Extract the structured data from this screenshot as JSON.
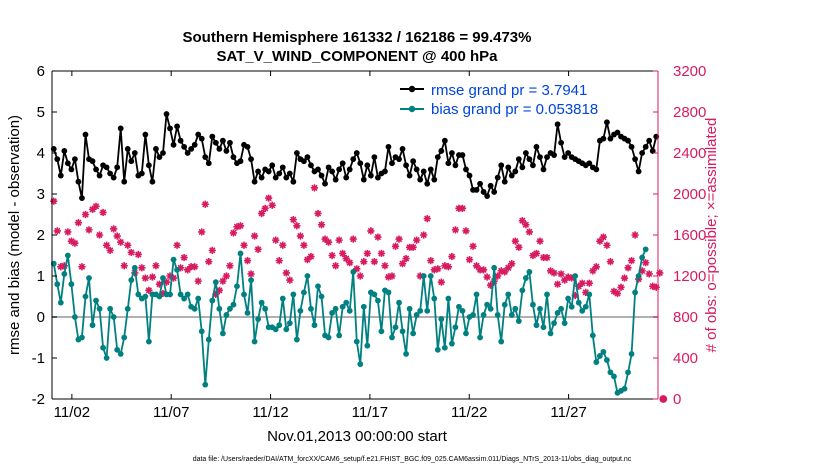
{
  "chart_data": {
    "type": "line",
    "title": "Southern Hemisphere 161332 / 162186 = 99.473%",
    "subtitle": "SAT_V_WIND_COMPONENT @ 400 hPa",
    "xlabel": "Nov.01,2013 00:00:00 start",
    "ylabel_left": "rmse and bias (model - observation)",
    "ylabel_right": "# of obs: o=possible; ×=assimilated",
    "footer": "data file: /Users/raeder/DAI/ATM_forcXX/CAM6_setup/f.e21.FHIST_BGC.f09_025.CAM6assim.011/Diags_NTrS_2013-11/obs_diag_output.nc",
    "xlim": [
      0.5,
      31
    ],
    "x_ticks": [
      1.5,
      6.5,
      11.5,
      16.5,
      21.5,
      26.5
    ],
    "x_tick_labels": [
      "11/02",
      "11/07",
      "11/12",
      "11/17",
      "11/22",
      "11/27"
    ],
    "ylim_left": [
      -2,
      6
    ],
    "y_ticks_left": [
      -2,
      -1,
      0,
      1,
      2,
      3,
      4,
      5,
      6
    ],
    "ylim_right": [
      0,
      3200
    ],
    "y_ticks_right": [
      0,
      400,
      800,
      1200,
      1600,
      2000,
      2400,
      2800,
      3200
    ],
    "colors": {
      "rmse": "#000000",
      "bias": "#008080",
      "obs": "#d81b60",
      "zero_line": "#b0b0b0",
      "legend_text": "#0044dd"
    },
    "legend": [
      {
        "name": "rmse grand pr = 3.7941"
      },
      {
        "name": "bias grand pr = 0.053818"
      }
    ],
    "series": [
      {
        "name": "rmse",
        "values": [
          4.1,
          3.85,
          3.45,
          4.05,
          3.75,
          3.6,
          3.85,
          3.3,
          2.9,
          4.45,
          3.85,
          3.8,
          3.6,
          3.45,
          3.7,
          3.65,
          3.5,
          3.4,
          3.65,
          4.6,
          3.3,
          4.1,
          3.8,
          4.0,
          3.45,
          3.5,
          4.45,
          3.7,
          3.3,
          4.1,
          3.9,
          4.0,
          4.95,
          4.6,
          4.2,
          4.65,
          4.3,
          4.15,
          4.0,
          4.1,
          4.2,
          4.45,
          4.35,
          3.9,
          3.75,
          4.4,
          4.25,
          4.1,
          4.3,
          4.05,
          4.25,
          3.9,
          3.75,
          3.8,
          4.2,
          4.15,
          3.85,
          3.3,
          3.55,
          3.4,
          3.6,
          3.55,
          3.7,
          3.4,
          3.5,
          3.65,
          3.4,
          3.5,
          3.3,
          4.0,
          3.85,
          3.8,
          3.9,
          3.7,
          3.55,
          3.6,
          3.45,
          3.25,
          3.65,
          3.55,
          3.35,
          3.6,
          3.75,
          3.4,
          3.6,
          3.85,
          4.0,
          3.75,
          3.35,
          3.7,
          3.45,
          3.9,
          3.4,
          3.5,
          3.55,
          4.15,
          3.75,
          3.9,
          3.85,
          4.1,
          3.7,
          3.45,
          3.8,
          3.6,
          3.35,
          3.55,
          3.25,
          3.6,
          3.35,
          3.9,
          4.05,
          4.3,
          3.75,
          4.0,
          3.7,
          3.95,
          3.95,
          3.6,
          3.45,
          3.1,
          3.1,
          3.25,
          3.05,
          2.95,
          3.2,
          3.05,
          3.4,
          3.7,
          3.3,
          3.65,
          3.45,
          3.55,
          3.85,
          3.65,
          4.0,
          3.85,
          3.7,
          4.15,
          3.9,
          3.6,
          3.9,
          4.0,
          3.95,
          4.7,
          4.25,
          3.9,
          4.0,
          3.9,
          3.85,
          3.8,
          3.75,
          3.7,
          3.75,
          3.65,
          3.6,
          4.3,
          4.35,
          4.75,
          4.35,
          4.45,
          4.5,
          4.4,
          4.35,
          4.3,
          4.15,
          3.85,
          3.55,
          4.0,
          4.15,
          4.3,
          4.05,
          4.4
        ]
      },
      {
        "name": "bias",
        "values": [
          1.3,
          0.8,
          0.35,
          1.05,
          1.5,
          0.8,
          0,
          -0.55,
          -0.5,
          0.5,
          0.95,
          -0.2,
          0.4,
          0.2,
          -0.75,
          -1.0,
          0.2,
          0,
          -0.8,
          -0.9,
          -0.5,
          0.2,
          0.9,
          1.2,
          0.55,
          0.45,
          0.5,
          -0.6,
          0.55,
          0.55,
          0.5,
          0.95,
          0.55,
          0.55,
          1.4,
          1.15,
          0.55,
          0.45,
          0.55,
          0.25,
          0.2,
          0.45,
          -0.35,
          -1.65,
          -0.55,
          0.4,
          0.85,
          0.2,
          -0.4,
          0.05,
          0.2,
          0.3,
          0.75,
          1.55,
          0.55,
          0.1,
          0.9,
          -0.6,
          -0.05,
          0.35,
          0.2,
          -0.25,
          -0.25,
          -0.3,
          -0.2,
          0.45,
          -0.3,
          -0.15,
          0.55,
          -0.55,
          0.15,
          0.6,
          1.0,
          0.2,
          -0.2,
          0.75,
          0.5,
          -0.45,
          -0.5,
          0.1,
          0.2,
          -0.45,
          0.25,
          0.35,
          0.15,
          1.1,
          -0.6,
          -1.15,
          0.25,
          -0.7,
          0.6,
          0.55,
          0.4,
          -0.35,
          0.65,
          0.6,
          -0.5,
          -0.25,
          0.35,
          -0.35,
          -0.9,
          0.2,
          -0.4,
          0.05,
          0.15,
          1.0,
          0.15,
          1.0,
          0.45,
          -0.8,
          -0.05,
          -0.75,
          0.45,
          -0.65,
          -0.25,
          0.25,
          0.15,
          -0.4,
          0.0,
          0.05,
          0.55,
          -0.5,
          0.05,
          0.3,
          0.2,
          1.2,
          0.05,
          -0.6,
          0.3,
          0.55,
          0.05,
          0.2,
          -0.1,
          0.65,
          0.95,
          1.1,
          0.3,
          -0.2,
          0.2,
          -0.25,
          0.55,
          -0.4,
          -0.15,
          0.1,
          0.2,
          -0.15,
          0.45,
          0.25,
          1.0,
          0.35,
          0.15,
          0.25,
          0.55,
          -0.45,
          -1.1,
          -0.95,
          -0.85,
          -1.05,
          -1.35,
          -1.45,
          -1.85,
          -1.8,
          -1.75,
          -1.35,
          -0.9,
          0.6,
          1.0,
          1.45,
          1.65
        ]
      },
      {
        "name": "obs_possible",
        "values": [
          1930,
          1640,
          1290,
          1300,
          1630,
          1540,
          1520,
          1720,
          1290,
          1800,
          1650,
          1850,
          1880,
          1600,
          1820,
          1500,
          1450,
          1660,
          1590,
          1530,
          1300,
          1500,
          1430,
          1230,
          1410,
          1280,
          1180,
          1060,
          1190,
          1300,
          1120,
          1030,
          1140,
          1200,
          1180,
          1500,
          1280,
          1380,
          1260,
          1290,
          1290,
          1150,
          1630,
          1900,
          1340,
          1450,
          1020,
          1060,
          1150,
          1200,
          1300,
          1620,
          1680,
          1690,
          1500,
          1350,
          1220,
          1590,
          1460,
          1810,
          1860,
          1960,
          1890,
          1550,
          1350,
          1500,
          1230,
          1160,
          1750,
          1690,
          1590,
          1500,
          1360,
          1390,
          2060,
          1810,
          1700,
          1560,
          1530,
          1400,
          1300,
          1550,
          1420,
          1370,
          1330,
          1560,
          1270,
          1200,
          1340,
          1420,
          1640,
          1340,
          1580,
          1420,
          1300,
          1190,
          1200,
          1490,
          1560,
          1320,
          1370,
          1480,
          1480,
          1550,
          1200,
          1600,
          1760,
          1350,
          1260,
          1270,
          1140,
          1300,
          1290,
          1390,
          1650,
          1860,
          1860,
          1640,
          1360,
          1490,
          1300,
          1260,
          1260,
          1190,
          1110,
          1150,
          1200,
          1250,
          1240,
          1280,
          1320,
          1540,
          1480,
          1740,
          1700,
          1630,
          1400,
          1420,
          1540,
          1380,
          1380,
          1250,
          1230,
          1120,
          1220,
          1160,
          1190,
          1180,
          1010,
          1100,
          1130,
          1040,
          1130,
          1250,
          1290,
          1540,
          1580,
          1500,
          1340,
          1050,
          1030,
          1090,
          1180,
          1280,
          1350,
          1600,
          1170,
          1250,
          1330,
          1220,
          1100,
          1090,
          1230,
          0
        ]
      }
    ]
  }
}
